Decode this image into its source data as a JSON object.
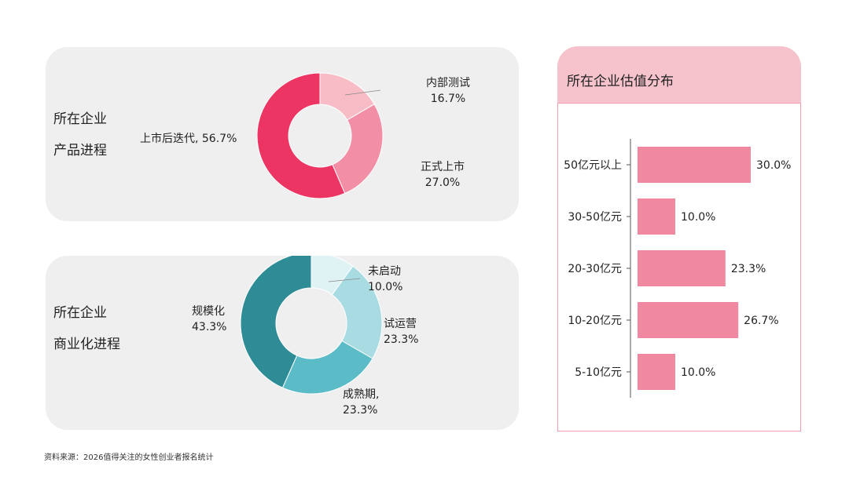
{
  "product_panel": {
    "title_line1": "所在企业",
    "title_line2": "产品进程"
  },
  "commercial_panel": {
    "title_line1": "所在企业",
    "title_line2": "商业化进程"
  },
  "valuation_panel": {
    "title": "所在企业估值分布"
  },
  "footnote": "资料来源：2026值得关注的女性创业者报名统计",
  "colors": {
    "product_slices": [
      "#f7bcc6",
      "#f28ea5",
      "#ec3562"
    ],
    "commercial_slices": [
      "#dff3f4",
      "#a9dce2",
      "#5bbcc8",
      "#2e8c96"
    ],
    "bars": "#f088a1",
    "panel_bg": "#efefef",
    "header_bg": "#f6c3cc"
  },
  "chart_data": [
    {
      "type": "pie",
      "variant": "donut",
      "slices": [
        {
          "name": "内部测试",
          "value": 16.7,
          "label_line1": "内部测试",
          "label_line2": "16.7%"
        },
        {
          "name": "正式上市",
          "value": 27.0,
          "label_line1": "正式上市",
          "label_line2": "27.0%"
        },
        {
          "name": "上市后迭代",
          "value": 56.7,
          "label_line1": "上市后迭代, 56.7%",
          "label_line2": ""
        }
      ]
    },
    {
      "type": "pie",
      "variant": "donut",
      "slices": [
        {
          "name": "未启动",
          "value": 10.0,
          "label_line1": "未启动",
          "label_line2": "10.0%"
        },
        {
          "name": "试运营",
          "value": 23.3,
          "label_line1": "试运营",
          "label_line2": "23.3%"
        },
        {
          "name": "成熟期",
          "value": 23.3,
          "label_line1": "成熟期,",
          "label_line2": "23.3%"
        },
        {
          "name": "规模化",
          "value": 43.3,
          "label_line1": "规模化",
          "label_line2": "43.3%"
        }
      ]
    },
    {
      "type": "bar",
      "orientation": "horizontal",
      "categories": [
        "50亿元以上",
        "30-50亿元",
        "20-30亿元",
        "10-20亿元",
        "5-10亿元"
      ],
      "values": [
        30.0,
        10.0,
        23.3,
        26.7,
        10.0
      ],
      "value_labels": [
        "30.0%",
        "10.0%",
        "23.3%",
        "26.7%",
        "10.0%"
      ],
      "xlim": [
        0,
        30
      ]
    }
  ]
}
